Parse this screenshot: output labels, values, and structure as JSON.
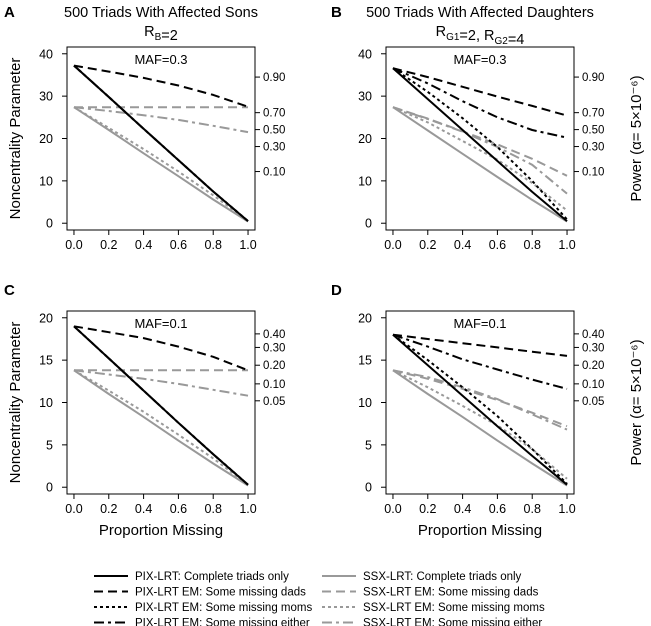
{
  "figure": {
    "x_label": "Proportion Missing",
    "left_ylabel": "Noncentrality Parameter",
    "right_ylabel": "Power (α= 5×10⁻⁶)"
  },
  "styles": {
    "black": "#000000",
    "gray": "#999999"
  },
  "legend": [
    {
      "label": "PIX-LRT: Complete triads only",
      "color": "black",
      "dash": "solid"
    },
    {
      "label": "PIX-LRT EM: Some missing dads",
      "color": "black",
      "dash": "dash"
    },
    {
      "label": "PIX-LRT EM: Some missing moms",
      "color": "black",
      "dash": "dot"
    },
    {
      "label": "PIX-LRT EM: Some missing either",
      "color": "black",
      "dash": "dashdot"
    },
    {
      "label": "SSX-LRT: Complete triads only",
      "color": "gray",
      "dash": "solid"
    },
    {
      "label": "SSX-LRT EM: Some missing dads",
      "color": "gray",
      "dash": "dash"
    },
    {
      "label": "SSX-LRT EM: Some missing moms",
      "color": "gray",
      "dash": "dot"
    },
    {
      "label": "SSX-LRT EM: Some missing either",
      "color": "gray",
      "dash": "dashdot"
    }
  ],
  "chart_data": [
    {
      "panel": "A",
      "type": "line",
      "title": "500 Triads With Affected Sons",
      "subtitle": "R_B=2",
      "annotation": "MAF=0.3",
      "xlabel": "",
      "ylabel": "Noncentrality Parameter",
      "xlim": [
        0,
        1
      ],
      "ylim": [
        0,
        40
      ],
      "x_ticks": [
        "0.0",
        "0.2",
        "0.4",
        "0.6",
        "0.8",
        "1.0"
      ],
      "y_ticks": [
        0,
        10,
        20,
        30,
        40
      ],
      "power_ticks": [
        {
          "label": "0.90",
          "ncp": 34.5
        },
        {
          "label": "0.70",
          "ncp": 26.1
        },
        {
          "label": "0.50",
          "ncp": 22.1
        },
        {
          "label": "0.30",
          "ncp": 18.1
        },
        {
          "label": "0.10",
          "ncp": 12.2
        }
      ],
      "x": [
        0,
        0.2,
        0.4,
        0.6,
        0.8,
        1.0
      ],
      "series": [
        {
          "name": "PIX-LRT: Complete triads only",
          "values": [
            37.2,
            29.8,
            22.3,
            14.9,
            7.5,
            0.5
          ]
        },
        {
          "name": "PIX-LRT EM: Some missing dads",
          "values": [
            37.2,
            35.8,
            34.3,
            32.5,
            30.3,
            27.5
          ]
        },
        {
          "name": "PIX-LRT EM: Some missing moms",
          "values": [
            37.2,
            29.8,
            22.3,
            14.9,
            7.5,
            0.5
          ]
        },
        {
          "name": "PIX-LRT EM: Some missing either",
          "values": [
            37.2,
            29.8,
            22.3,
            14.9,
            7.5,
            0.5
          ]
        },
        {
          "name": "SSX-LRT: Complete triads only",
          "values": [
            27.4,
            22.0,
            16.5,
            11.1,
            5.6,
            0.4
          ]
        },
        {
          "name": "SSX-LRT EM: Some missing dads",
          "values": [
            27.4,
            27.4,
            27.4,
            27.4,
            27.4,
            27.4
          ]
        },
        {
          "name": "SSX-LRT EM: Some missing moms",
          "values": [
            27.4,
            22.5,
            17.5,
            12.2,
            6.6,
            0.6
          ]
        },
        {
          "name": "SSX-LRT EM: Some missing either",
          "values": [
            27.4,
            26.5,
            25.5,
            24.4,
            23.0,
            21.5
          ]
        }
      ]
    },
    {
      "panel": "B",
      "type": "line",
      "title": "500 Triads With Affected Daughters",
      "subtitle": "R_G1=2, R_G2=4",
      "annotation": "MAF=0.3",
      "xlabel": "",
      "ylabel": "Power (α= 5×10⁻⁶)",
      "xlim": [
        0,
        1
      ],
      "ylim": [
        0,
        40
      ],
      "x_ticks": [
        "0.0",
        "0.2",
        "0.4",
        "0.6",
        "0.8",
        "1.0"
      ],
      "y_ticks": [
        0,
        10,
        20,
        30,
        40
      ],
      "power_ticks": [
        {
          "label": "0.90",
          "ncp": 34.5
        },
        {
          "label": "0.70",
          "ncp": 26.1
        },
        {
          "label": "0.50",
          "ncp": 22.1
        },
        {
          "label": "0.30",
          "ncp": 18.1
        },
        {
          "label": "0.10",
          "ncp": 12.2
        }
      ],
      "x": [
        0,
        0.2,
        0.4,
        0.6,
        0.8,
        1.0
      ],
      "series": [
        {
          "name": "PIX-LRT: Complete triads only",
          "values": [
            36.6,
            29.3,
            22.0,
            14.7,
            7.4,
            0.5
          ]
        },
        {
          "name": "PIX-LRT EM: Some missing dads",
          "values": [
            36.6,
            34.5,
            32.2,
            29.9,
            27.7,
            25.4
          ]
        },
        {
          "name": "PIX-LRT EM: Some missing moms",
          "values": [
            36.6,
            31.0,
            24.8,
            18.0,
            10.0,
            0.9
          ]
        },
        {
          "name": "PIX-LRT EM: Some missing either",
          "values": [
            36.6,
            33.0,
            28.8,
            25.0,
            22.0,
            20.2
          ]
        },
        {
          "name": "SSX-LRT: Complete triads only",
          "values": [
            27.4,
            21.9,
            16.4,
            10.9,
            5.5,
            0.4
          ]
        },
        {
          "name": "SSX-LRT EM: Some missing dads",
          "values": [
            27.4,
            24.7,
            21.7,
            18.6,
            15.2,
            11.2
          ]
        },
        {
          "name": "SSX-LRT EM: Some missing moms",
          "values": [
            27.4,
            23.8,
            19.4,
            15.0,
            9.5,
            3.0
          ]
        },
        {
          "name": "SSX-LRT EM: Some missing either",
          "values": [
            27.4,
            24.6,
            21.6,
            18.0,
            13.8,
            7.0
          ]
        }
      ]
    },
    {
      "panel": "C",
      "type": "line",
      "title": "",
      "subtitle": "",
      "annotation": "MAF=0.1",
      "xlabel": "Proportion Missing",
      "ylabel": "Noncentrality Parameter",
      "xlim": [
        0,
        1
      ],
      "ylim": [
        0,
        20
      ],
      "x_ticks": [
        "0.0",
        "0.2",
        "0.4",
        "0.6",
        "0.8",
        "1.0"
      ],
      "y_ticks": [
        0,
        5,
        10,
        15,
        20
      ],
      "power_ticks": [
        {
          "label": "0.40",
          "ncp": 18.1
        },
        {
          "label": "0.30",
          "ncp": 16.5
        },
        {
          "label": "0.20",
          "ncp": 14.4
        },
        {
          "label": "0.10",
          "ncp": 12.2
        },
        {
          "label": "0.05",
          "ncp": 10.2
        }
      ],
      "x": [
        0,
        0.2,
        0.4,
        0.6,
        0.8,
        1.0
      ],
      "series": [
        {
          "name": "PIX-LRT: Complete triads only",
          "values": [
            19.0,
            15.2,
            11.4,
            7.6,
            3.9,
            0.3
          ]
        },
        {
          "name": "PIX-LRT EM: Some missing dads",
          "values": [
            19.0,
            18.3,
            17.6,
            16.6,
            15.4,
            13.8
          ]
        },
        {
          "name": "PIX-LRT EM: Some missing moms",
          "values": [
            19.0,
            15.2,
            11.4,
            7.6,
            3.9,
            0.3
          ]
        },
        {
          "name": "PIX-LRT EM: Some missing either",
          "values": [
            19.0,
            15.2,
            11.4,
            7.6,
            3.9,
            0.3
          ]
        },
        {
          "name": "SSX-LRT: Complete triads only",
          "values": [
            13.8,
            11.0,
            8.3,
            5.5,
            2.8,
            0.2
          ]
        },
        {
          "name": "SSX-LRT EM: Some missing dads",
          "values": [
            13.8,
            13.8,
            13.8,
            13.8,
            13.8,
            13.8
          ]
        },
        {
          "name": "SSX-LRT EM: Some missing moms",
          "values": [
            13.8,
            11.4,
            8.9,
            6.2,
            3.4,
            0.3
          ]
        },
        {
          "name": "SSX-LRT EM: Some missing either",
          "values": [
            13.8,
            13.3,
            12.8,
            12.2,
            11.5,
            10.8
          ]
        }
      ]
    },
    {
      "panel": "D",
      "type": "line",
      "title": "",
      "subtitle": "",
      "annotation": "MAF=0.1",
      "xlabel": "Proportion Missing",
      "ylabel": "Power (α= 5×10⁻⁶)",
      "xlim": [
        0,
        1
      ],
      "ylim": [
        0,
        20
      ],
      "x_ticks": [
        "0.0",
        "0.2",
        "0.4",
        "0.6",
        "0.8",
        "1.0"
      ],
      "y_ticks": [
        0,
        5,
        10,
        15,
        20
      ],
      "power_ticks": [
        {
          "label": "0.40",
          "ncp": 18.1
        },
        {
          "label": "0.30",
          "ncp": 16.5
        },
        {
          "label": "0.20",
          "ncp": 14.4
        },
        {
          "label": "0.10",
          "ncp": 12.2
        },
        {
          "label": "0.05",
          "ncp": 10.2
        }
      ],
      "x": [
        0,
        0.2,
        0.4,
        0.6,
        0.8,
        1.0
      ],
      "series": [
        {
          "name": "PIX-LRT: Complete triads only",
          "values": [
            18.0,
            14.4,
            10.8,
            7.2,
            3.7,
            0.3
          ]
        },
        {
          "name": "PIX-LRT EM: Some missing dads",
          "values": [
            18.0,
            17.5,
            17.0,
            16.5,
            16.0,
            15.5
          ]
        },
        {
          "name": "PIX-LRT EM: Some missing moms",
          "values": [
            18.0,
            15.0,
            11.8,
            8.4,
            4.5,
            0.4
          ]
        },
        {
          "name": "PIX-LRT EM: Some missing either",
          "values": [
            18.0,
            16.6,
            15.1,
            13.9,
            12.7,
            11.6
          ]
        },
        {
          "name": "SSX-LRT: Complete triads only",
          "values": [
            13.8,
            11.0,
            8.3,
            5.5,
            2.8,
            0.2
          ]
        },
        {
          "name": "SSX-LRT EM: Some missing dads",
          "values": [
            13.8,
            12.8,
            11.6,
            10.3,
            8.8,
            7.2
          ]
        },
        {
          "name": "SSX-LRT EM: Some missing moms",
          "values": [
            13.8,
            11.8,
            9.6,
            7.3,
            4.5,
            1.0
          ]
        },
        {
          "name": "SSX-LRT EM: Some missing either",
          "values": [
            13.8,
            13.0,
            11.8,
            10.4,
            8.6,
            6.8
          ]
        }
      ]
    }
  ]
}
